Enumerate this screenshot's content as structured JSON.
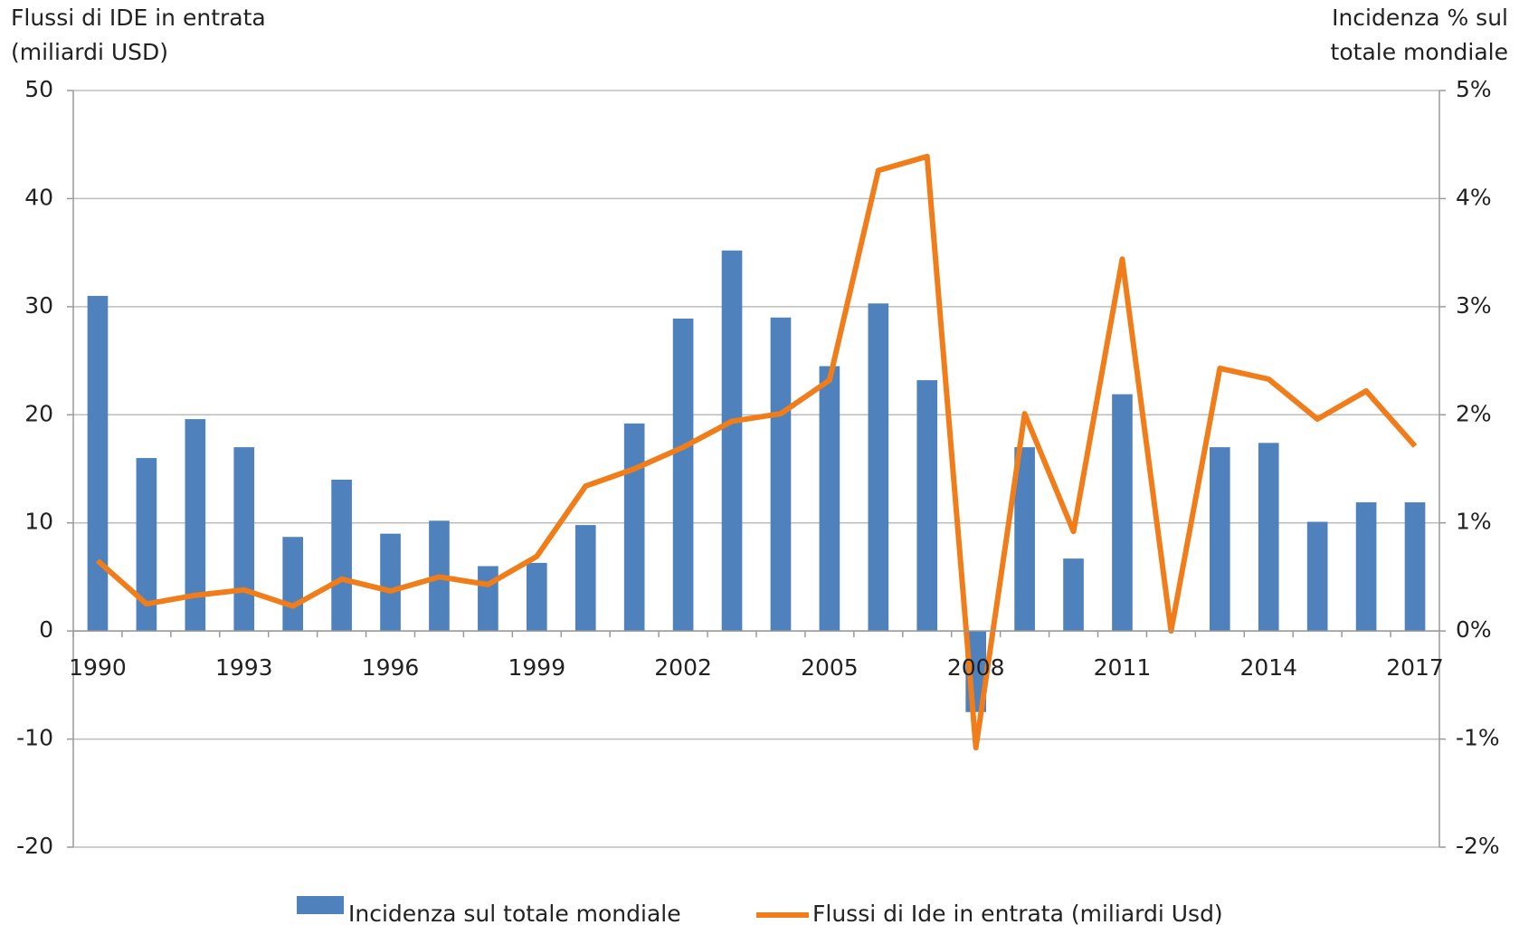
{
  "chart_data": {
    "type": "bar_line",
    "y_label": [
      "Flussi di IDE in entrata",
      "(miliardi USD)"
    ],
    "y2_label": [
      "Incidenza % sul",
      "totale mondiale"
    ],
    "categories": [
      "1990",
      null,
      null,
      "1993",
      null,
      null,
      "1996",
      null,
      null,
      "1999",
      null,
      null,
      "2002",
      null,
      null,
      "2005",
      null,
      null,
      "2008",
      null,
      null,
      "2011",
      null,
      null,
      "2014",
      null,
      null,
      "2017"
    ],
    "series": [
      {
        "name": "Incidenza sul totale mondiale",
        "type": "bar",
        "axis": "y2",
        "color": "#4f81bd",
        "values": [
          3.1,
          1.6,
          1.96,
          1.7,
          0.87,
          1.4,
          0.9,
          1.02,
          0.6,
          0.63,
          0.98,
          1.92,
          2.89,
          3.52,
          2.9,
          2.45,
          3.03,
          2.32,
          -0.75,
          1.7,
          0.67,
          2.19,
          0,
          1.7,
          1.74,
          1.01,
          1.19,
          1.19
        ]
      },
      {
        "name": "Flussi di Ide in entrata (miliardi Usd)",
        "type": "line",
        "axis": "y",
        "color": "#f07d1a",
        "values": [
          6.5,
          2.5,
          3.3,
          3.8,
          2.3,
          4.8,
          3.7,
          5.0,
          4.3,
          6.9,
          13.4,
          15,
          17,
          19.4,
          20.1,
          23.2,
          42.6,
          43.9,
          -10.8,
          20.1,
          9.2,
          34.4,
          0,
          24.3,
          23.3,
          19.6,
          22.2,
          17.1
        ]
      }
    ],
    "ylim": [
      -20,
      50
    ],
    "yticks": [
      -20,
      -10,
      0,
      10,
      20,
      30,
      40,
      50
    ],
    "y2lim": [
      -2,
      5
    ],
    "y2ticks": [
      {
        "value": -2,
        "label": "-2%"
      },
      {
        "value": -1,
        "label": "-1%"
      },
      {
        "value": 0,
        "label": "0%"
      },
      {
        "value": 1,
        "label": "1%"
      },
      {
        "value": 2,
        "label": "2%"
      },
      {
        "value": 3,
        "label": "3%"
      },
      {
        "value": 4,
        "label": "4%"
      },
      {
        "value": 5,
        "label": "5%"
      }
    ],
    "grid": true,
    "legend": "bottom"
  }
}
